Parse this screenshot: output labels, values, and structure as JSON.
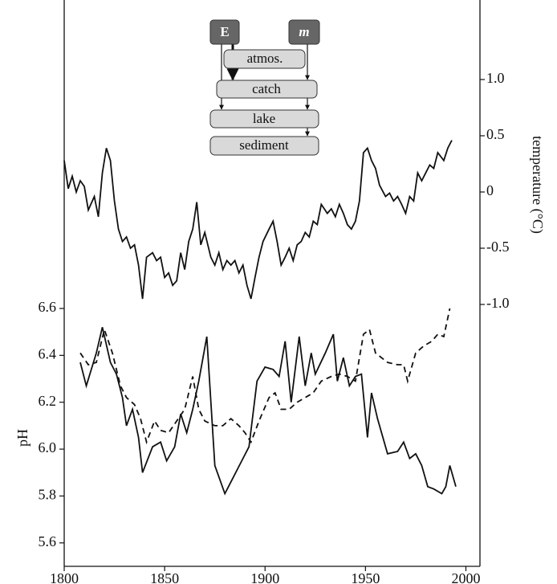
{
  "chart_data": {
    "type": "line",
    "xlim": [
      1800,
      2007
    ],
    "xticks": [
      1800,
      1850,
      1900,
      1950,
      2000
    ],
    "ylim": [
      5.5,
      6.6
    ],
    "yticks": [
      6.6,
      6.4,
      6.2,
      {
        "value": 6.0,
        "label": "6.0"
      },
      5.8,
      5.6
    ],
    "y2lim": [
      -1.0,
      1.6
    ],
    "y2ticks": [
      {
        "value": 1.0,
        "label": "1.0"
      },
      0.5,
      0,
      -0.5,
      {
        "value": -1.0,
        "label": "-1.0"
      }
    ],
    "y_label": "pH",
    "y2_label": "temperature (°C)",
    "series": [
      {
        "color": "#111",
        "linestyle": "solid",
        "axis": "y2",
        "x": [
          1800,
          1802,
          1804,
          1806,
          1808,
          1810,
          1812,
          1815,
          1817,
          1819,
          1821,
          1823,
          1825,
          1827,
          1829,
          1831,
          1833,
          1835,
          1837,
          1839,
          1841,
          1844,
          1846,
          1848,
          1850,
          1852,
          1854,
          1856,
          1858,
          1860,
          1862,
          1864,
          1866,
          1868,
          1870,
          1873,
          1875,
          1877,
          1879,
          1881,
          1883,
          1885,
          1887,
          1889,
          1891,
          1893,
          1895,
          1897,
          1899,
          1902,
          1904,
          1906,
          1908,
          1910,
          1912,
          1914,
          1916,
          1918,
          1920,
          1922,
          1924,
          1926,
          1928,
          1931,
          1933,
          1935,
          1937,
          1939,
          1941,
          1943,
          1945,
          1947,
          1949,
          1951,
          1953,
          1955,
          1957,
          1960,
          1962,
          1964,
          1966,
          1968,
          1970,
          1972,
          1974,
          1976,
          1978,
          1980,
          1982,
          1984,
          1986,
          1989,
          1991,
          1993
        ],
        "values": [
          0.28,
          0.03,
          0.14,
          0,
          0.1,
          0.05,
          -0.16,
          -0.04,
          -0.22,
          0.17,
          0.39,
          0.28,
          -0.08,
          -0.33,
          -0.44,
          -0.4,
          -0.5,
          -0.47,
          -0.65,
          -0.95,
          -0.58,
          -0.54,
          -0.61,
          -0.58,
          -0.76,
          -0.72,
          -0.83,
          -0.79,
          -0.54,
          -0.69,
          -0.44,
          -0.33,
          -0.09,
          -0.47,
          -0.36,
          -0.58,
          -0.65,
          -0.54,
          -0.69,
          -0.61,
          -0.65,
          -0.61,
          -0.72,
          -0.65,
          -0.83,
          -0.95,
          -0.76,
          -0.58,
          -0.44,
          -0.33,
          -0.26,
          -0.44,
          -0.65,
          -0.58,
          -0.5,
          -0.61,
          -0.47,
          -0.44,
          -0.36,
          -0.4,
          -0.26,
          -0.29,
          -0.11,
          -0.19,
          -0.15,
          -0.22,
          -0.11,
          -0.19,
          -0.29,
          -0.33,
          -0.26,
          -0.08,
          0.35,
          0.39,
          0.28,
          0.21,
          0.06,
          -0.04,
          -0.01,
          -0.08,
          -0.04,
          -0.11,
          -0.19,
          -0.04,
          -0.08,
          0.17,
          0.1,
          0.17,
          0.24,
          0.21,
          0.35,
          0.28,
          0.39,
          0.46
        ]
      },
      {
        "color": "#111",
        "linestyle": "solid",
        "x": [
          1808,
          1811,
          1816,
          1819,
          1823,
          1826,
          1829,
          1831,
          1834,
          1837,
          1839,
          1844,
          1848,
          1851,
          1855,
          1858,
          1861,
          1864,
          1867,
          1871,
          1875,
          1880,
          1883,
          1886,
          1889,
          1892,
          1896,
          1900,
          1904,
          1907,
          1910,
          1913,
          1917,
          1920,
          1923,
          1925,
          1930,
          1934,
          1936,
          1939,
          1942,
          1945,
          1948,
          1951,
          1953,
          1956,
          1961,
          1966,
          1969,
          1972,
          1975,
          1978,
          1981,
          1984,
          1988,
          1990,
          1992,
          1995
        ],
        "values": [
          6.37,
          6.27,
          6.41,
          6.52,
          6.37,
          6.32,
          6.22,
          6.1,
          6.17,
          6.05,
          5.9,
          6.01,
          6.03,
          5.95,
          6.01,
          6.15,
          6.07,
          6.17,
          6.29,
          6.48,
          5.93,
          5.81,
          5.86,
          5.91,
          5.96,
          6.01,
          6.29,
          6.35,
          6.34,
          6.31,
          6.46,
          6.2,
          6.48,
          6.27,
          6.41,
          6.32,
          6.41,
          6.49,
          6.29,
          6.39,
          6.27,
          6.31,
          6.32,
          6.05,
          6.24,
          6.13,
          5.98,
          5.99,
          6.03,
          5.96,
          5.98,
          5.93,
          5.84,
          5.83,
          5.81,
          5.84,
          5.93,
          5.84
        ]
      },
      {
        "color": "#111",
        "linestyle": "dashed",
        "x": [
          1808,
          1812,
          1816,
          1820,
          1824,
          1828,
          1831,
          1835,
          1838,
          1841,
          1845,
          1848,
          1852,
          1856,
          1860,
          1864,
          1867,
          1870,
          1875,
          1879,
          1883,
          1887,
          1890,
          1893,
          1897,
          1902,
          1905,
          1908,
          1912,
          1916,
          1920,
          1924,
          1928,
          1933,
          1937,
          1941,
          1945,
          1949,
          1952,
          1955,
          1961,
          1966,
          1969,
          1971,
          1975,
          1979,
          1983,
          1986,
          1989,
          1992
        ],
        "values": [
          6.41,
          6.36,
          6.37,
          6.51,
          6.41,
          6.27,
          6.22,
          6.19,
          6.13,
          6.03,
          6.12,
          6.08,
          6.07,
          6.12,
          6.17,
          6.31,
          6.17,
          6.12,
          6.1,
          6.1,
          6.13,
          6.1,
          6.07,
          6.03,
          6.12,
          6.22,
          6.24,
          6.17,
          6.17,
          6.2,
          6.22,
          6.24,
          6.29,
          6.31,
          6.32,
          6.31,
          6.29,
          6.49,
          6.51,
          6.41,
          6.37,
          6.36,
          6.36,
          6.29,
          6.41,
          6.44,
          6.46,
          6.49,
          6.48,
          6.6
        ]
      }
    ]
  },
  "inset": {
    "emission": "E",
    "mass": "m",
    "boxes": [
      "atmos.",
      "catch",
      "lake",
      "sediment"
    ]
  }
}
